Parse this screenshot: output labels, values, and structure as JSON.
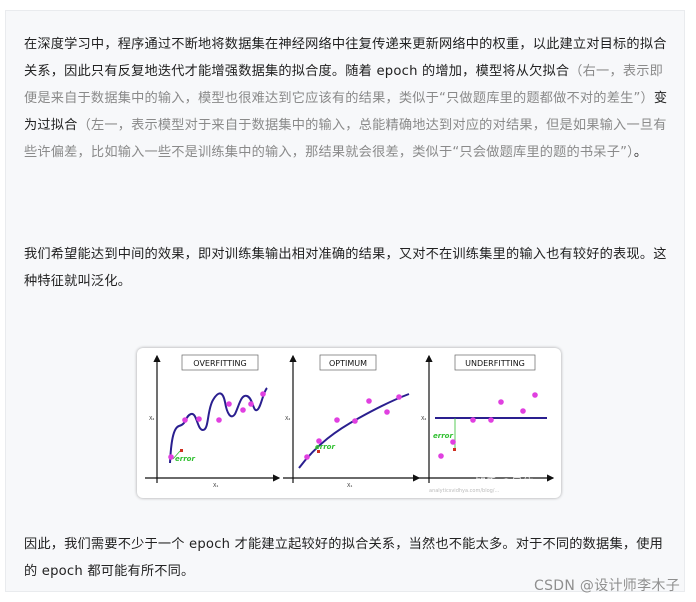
{
  "paragraph1": {
    "part1": "在深度学习中，程序通过不断地将数据集在神经网络中往复传递来更新网络中的权重，以此建立对目标的拟合关系，因此只有反复地迭代才能增强数据集的拟合度。随着 epoch 的增加，模型将从欠拟合",
    "grey1": "（右一，表示即便是来自于数据集中的输入，模型也很难达到它应该有的结果，类似于“只做题库里的题都做不对的差生”）",
    "part2": "变为过拟合",
    "grey2": "（左一，表示模型对于来自于数据集中的输入，总能精确地达到对应的对结果，但是如果输入一旦有些许偏差，比如输入一些不是训练集中的输入，那结果就会很差，类似于“只会做题库里的题的书呆子”）",
    "part3": "。"
  },
  "paragraph2": "我们希望能达到中间的效果，即对训练集输出相对准确的结果，又对不在训练集里的输入也有较好的表现。这种特征就叫泛化。",
  "paragraph3": "因此，我们需要不少于一个 epoch 才能建立起较好的拟合关系，当然也不能太多。对于不同的数据集，使用的 epoch 都可能有所不同。",
  "figure": {
    "panels": [
      {
        "title": "OVERFITTING"
      },
      {
        "title": "OPTIMUM"
      },
      {
        "title": "UNDERFITTING"
      }
    ],
    "x_label": "X₁",
    "y_label": "X₂",
    "error_label": "error",
    "watermark": "知乎 @风信",
    "watermark_sub": "analyticsvidhya.com/blog/...",
    "colors": {
      "points": "#e040e0",
      "curve": "#2a1f8f",
      "error": "#2fbf2f",
      "error_point": "#d03020"
    }
  },
  "footer": {
    "watermark": "CSDN @设计师李木子"
  }
}
